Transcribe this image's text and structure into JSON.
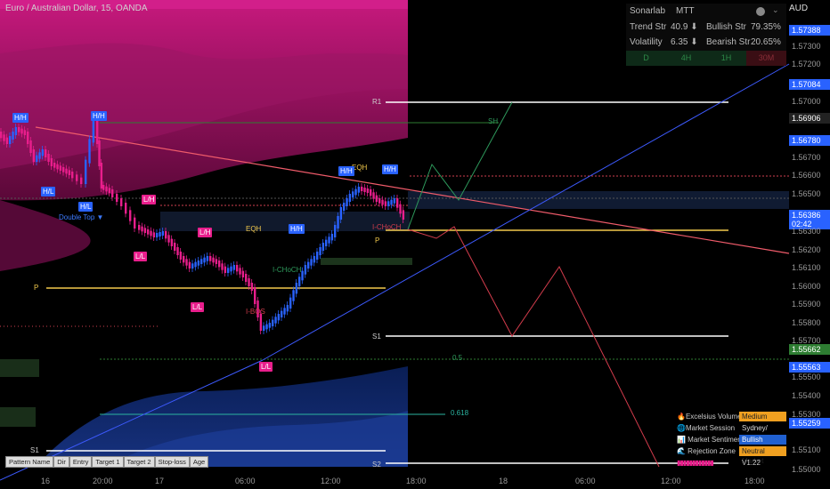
{
  "header": {
    "title": "Euro / Australian Dollar, 15, OANDA",
    "currency": "AUD"
  },
  "info_panel": {
    "brand": "Sonarlab",
    "indicator": "MTT",
    "trend_label": "Trend Str",
    "trend_value": "40.9 ⬇",
    "bullish_label": "Bullish Str",
    "bullish_value": "79.35%",
    "vol_label": "Volatility",
    "vol_value": "6.35 ⬇",
    "bearish_label": "Bearish Str",
    "bearish_value": "20.65%",
    "timeframes": [
      "D",
      "4H",
      "1H",
      "30M"
    ]
  },
  "price_axis": [
    {
      "text": "1.57388",
      "hl": true
    },
    {
      "text": "1.57300",
      "hl": false
    },
    {
      "text": "1.57200",
      "hl": false
    },
    {
      "text": "1.57084",
      "hl": true
    },
    {
      "text": "1.57000",
      "hl": false
    },
    {
      "text": "1.56906",
      "hl": true
    },
    {
      "text": "1.56780",
      "hl": true
    },
    {
      "text": "1.56700",
      "hl": false
    },
    {
      "text": "1.56600",
      "hl": false
    },
    {
      "text": "1.56500",
      "hl": false
    },
    {
      "text": "1.56386",
      "hl": true
    },
    {
      "text": "02:42",
      "hl": true
    },
    {
      "text": "1.56300",
      "hl": false
    },
    {
      "text": "1.56200",
      "hl": false
    },
    {
      "text": "1.56100",
      "hl": false
    },
    {
      "text": "1.56000",
      "hl": false
    },
    {
      "text": "1.55900",
      "hl": false
    },
    {
      "text": "1.55800",
      "hl": false
    },
    {
      "text": "1.55700",
      "hl": false
    },
    {
      "text": "1.55662",
      "hl": true
    },
    {
      "text": "1.55563",
      "hl": true
    },
    {
      "text": "1.55500",
      "hl": false
    },
    {
      "text": "1.55400",
      "hl": false
    },
    {
      "text": "1.55300",
      "hl": false
    },
    {
      "text": "1.55259",
      "hl": true
    },
    {
      "text": "1.55100",
      "hl": false
    },
    {
      "text": "1.55000",
      "hl": false
    }
  ],
  "time_axis": [
    "16",
    "20:00",
    "17",
    "06:00",
    "12:00",
    "18:00",
    "18",
    "06:00",
    "12:00",
    "18:00"
  ],
  "labels": {
    "hh1": "H/H",
    "hh2": "H/H",
    "hl1": "H/L",
    "hl2": "H/L",
    "double_top": "Double Top ▼",
    "lh1": "L/H",
    "lh2": "L/H",
    "ll1": "L/L",
    "ll2": "L/L",
    "ll3": "L/L",
    "eqh1": "EQH",
    "eqh2": "EQH",
    "hh3": "H/H",
    "hh4": "H/H",
    "hh5": "H/H",
    "ichoch1": "I-CHoCH",
    "ichoch2": "I-CHoCH",
    "ibos": "I-BOS",
    "r1": "R1",
    "p": "P",
    "p2": "P",
    "s1": "S1",
    "s1b": "S1",
    "s2": "S2",
    "sh": "SH",
    "fib05": "0.5",
    "fib0618": "0.618"
  },
  "legend": {
    "rows": [
      {
        "name": "🔥Excelsius Volume",
        "value": "Medium",
        "color": "#f0a020"
      },
      {
        "name": "🌐Market Session",
        "value": "Sydney/",
        "color": "#000000"
      },
      {
        "name": "📊 Market Sentiment",
        "value": "Bullish",
        "color": "#2060d0"
      },
      {
        "name": "🌊 Rejection Zone",
        "value": "Neutral Market",
        "color": "#f0a020"
      }
    ],
    "version": "V1.22"
  },
  "tabs": [
    "Pattern Name",
    "Dir",
    "Entry",
    "Target 1",
    "Target 2",
    "Stop-loss",
    "Age"
  ],
  "colors": {
    "bull": "#2962ff",
    "bear": "#e91e8c",
    "accent": "#f2c94c"
  }
}
